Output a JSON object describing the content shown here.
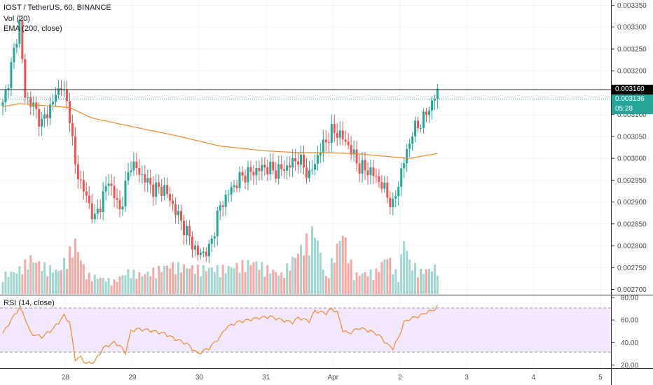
{
  "header": {
    "symbol_line": "IOST / TetherUS, 60, BINANCE",
    "vol_indicator": "Vol (20)",
    "ema_indicator": "EMA (200, close)",
    "rsi_indicator": "RSI (14, close)"
  },
  "price_tags": {
    "resistance": "0.003160",
    "last": "0.003136",
    "countdown": "05:28"
  },
  "colors": {
    "up": "#26a69a",
    "down": "#ef5350",
    "vol_up": "#9fd6cf",
    "vol_down": "#f4a9a7",
    "ema": "#f0892b",
    "rsi": "#f0892b",
    "rsi_band": "#f3e8fd",
    "last_tag": "#26a69a",
    "resistance_tag": "#000000"
  },
  "chart_data": [
    {
      "type": "candlestick",
      "title": "IOST / TetherUS, 60, BINANCE",
      "x_ticks": [
        "28",
        "29",
        "30",
        "31",
        "Apr",
        "2",
        "3",
        "4",
        "5"
      ],
      "y_ticks": [
        "0.003350",
        "0.003300",
        "0.003250",
        "0.003200",
        "0.003100",
        "0.003050",
        "0.003000",
        "0.002950",
        "0.002900",
        "0.002850",
        "0.002800",
        "0.002750",
        "0.002700"
      ],
      "y_range": [
        0.002688,
        0.003362
      ],
      "resistance_level": 0.00316,
      "last_price": 0.003136,
      "grid": true,
      "anchors": [
        [
          0,
          0.00312
        ],
        [
          3,
          0.00321
        ],
        [
          6,
          0.00331
        ],
        [
          8,
          0.00314
        ],
        [
          10,
          0.00313
        ],
        [
          14,
          0.00308
        ],
        [
          18,
          0.00313
        ],
        [
          21,
          0.00317
        ],
        [
          24,
          0.0031
        ],
        [
          26,
          0.00298
        ],
        [
          30,
          0.00291
        ],
        [
          33,
          0.00286
        ],
        [
          38,
          0.00295
        ],
        [
          42,
          0.00288
        ],
        [
          46,
          0.00299
        ],
        [
          50,
          0.00296
        ],
        [
          54,
          0.00293
        ],
        [
          58,
          0.00293
        ],
        [
          62,
          0.00288
        ],
        [
          66,
          0.00283
        ],
        [
          70,
          0.00278
        ],
        [
          74,
          0.00279
        ],
        [
          78,
          0.00289
        ],
        [
          82,
          0.00293
        ],
        [
          86,
          0.00296
        ],
        [
          90,
          0.00297
        ],
        [
          94,
          0.00298
        ],
        [
          98,
          0.00297
        ],
        [
          102,
          0.00298
        ],
        [
          106,
          0.003
        ],
        [
          110,
          0.00296
        ],
        [
          114,
          0.00302
        ],
        [
          118,
          0.00306
        ],
        [
          120,
          0.00306
        ],
        [
          124,
          0.00303
        ],
        [
          128,
          0.00298
        ],
        [
          132,
          0.00297
        ],
        [
          136,
          0.00294
        ],
        [
          140,
          0.00289
        ],
        [
          143,
          0.00297
        ],
        [
          147,
          0.00306
        ],
        [
          151,
          0.00309
        ],
        [
          155,
          0.00314
        ],
        [
          156,
          0.00315
        ]
      ],
      "ema_anchors": [
        [
          0,
          0.003118
        ],
        [
          6,
          0.003125
        ],
        [
          12,
          0.003122
        ],
        [
          24,
          0.003116
        ],
        [
          32,
          0.003092
        ],
        [
          46,
          0.003073
        ],
        [
          62,
          0.003052
        ],
        [
          78,
          0.003028
        ],
        [
          94,
          0.003017
        ],
        [
          106,
          0.003013
        ],
        [
          116,
          0.003013
        ],
        [
          128,
          0.00301
        ],
        [
          140,
          0.003003
        ],
        [
          146,
          0.003
        ],
        [
          156,
          0.003011
        ]
      ],
      "volume_anchors": [
        [
          0,
          0.3
        ],
        [
          5,
          0.35
        ],
        [
          10,
          0.55
        ],
        [
          14,
          0.45
        ],
        [
          20,
          0.35
        ],
        [
          26,
          0.8
        ],
        [
          30,
          0.3
        ],
        [
          40,
          0.2
        ],
        [
          45,
          0.35
        ],
        [
          50,
          0.3
        ],
        [
          60,
          0.45
        ],
        [
          70,
          0.4
        ],
        [
          80,
          0.4
        ],
        [
          90,
          0.5
        ],
        [
          100,
          0.3
        ],
        [
          112,
          1.0
        ],
        [
          116,
          0.25
        ],
        [
          122,
          0.97
        ],
        [
          126,
          0.3
        ],
        [
          134,
          0.35
        ],
        [
          138,
          0.6
        ],
        [
          142,
          0.25
        ],
        [
          144,
          0.88
        ],
        [
          146,
          0.5
        ],
        [
          150,
          0.35
        ],
        [
          156,
          0.42
        ]
      ]
    },
    {
      "type": "line",
      "title": "RSI (14, close)",
      "y_ticks": [
        "80.00",
        "60.00",
        "40.00",
        "20.00"
      ],
      "y_range": [
        16.5,
        82.5
      ],
      "band": [
        30,
        70
      ],
      "grid": true,
      "anchors": [
        [
          0,
          48
        ],
        [
          3,
          60
        ],
        [
          6,
          71
        ],
        [
          8,
          62
        ],
        [
          10,
          48
        ],
        [
          14,
          45
        ],
        [
          18,
          52
        ],
        [
          22,
          64
        ],
        [
          24,
          58
        ],
        [
          26,
          25
        ],
        [
          28,
          27
        ],
        [
          30,
          21
        ],
        [
          33,
          23
        ],
        [
          36,
          35
        ],
        [
          40,
          40
        ],
        [
          42,
          37
        ],
        [
          44,
          31
        ],
        [
          46,
          50
        ],
        [
          48,
          52
        ],
        [
          52,
          51
        ],
        [
          54,
          50
        ],
        [
          58,
          48
        ],
        [
          62,
          43
        ],
        [
          66,
          39
        ],
        [
          70,
          30
        ],
        [
          74,
          35
        ],
        [
          78,
          45
        ],
        [
          80,
          53
        ],
        [
          84,
          58
        ],
        [
          88,
          60
        ],
        [
          92,
          62
        ],
        [
          96,
          63
        ],
        [
          100,
          60
        ],
        [
          104,
          58
        ],
        [
          106,
          62
        ],
        [
          110,
          59
        ],
        [
          112,
          68
        ],
        [
          116,
          66
        ],
        [
          118,
          70
        ],
        [
          120,
          67
        ],
        [
          122,
          51
        ],
        [
          124,
          48
        ],
        [
          128,
          53
        ],
        [
          132,
          50
        ],
        [
          134,
          48
        ],
        [
          136,
          44
        ],
        [
          138,
          38
        ],
        [
          140,
          35
        ],
        [
          142,
          44
        ],
        [
          144,
          58
        ],
        [
          146,
          61
        ],
        [
          150,
          64
        ],
        [
          152,
          67
        ],
        [
          154,
          68
        ],
        [
          156,
          72
        ]
      ]
    }
  ]
}
